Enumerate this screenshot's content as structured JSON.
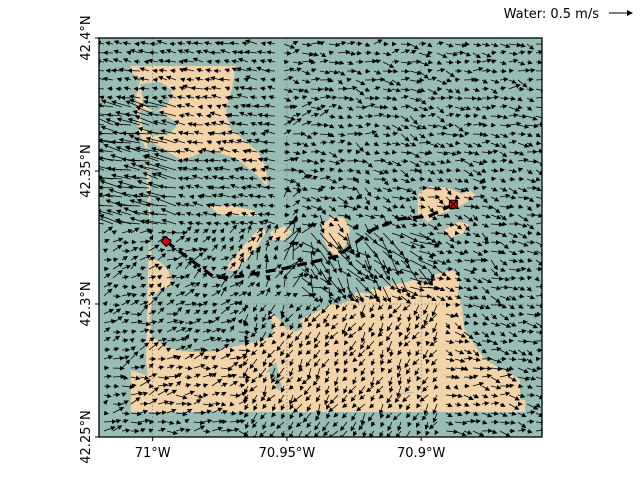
{
  "map": {
    "type": "current-vector-map",
    "colors": {
      "water": "#97bdb5",
      "land": "#f3d4a8",
      "route": "#000000",
      "marker": "#e00000",
      "arrows": "#000000",
      "grid": "#777777"
    },
    "extent": {
      "lon": [
        -71.02,
        -70.855
      ],
      "lat": [
        42.25,
        42.4
      ]
    },
    "x_ticks": [
      {
        "value": -71.0,
        "label": "71°W"
      },
      {
        "value": -70.95,
        "label": "70.95°W"
      },
      {
        "value": -70.9,
        "label": "70.9°W"
      }
    ],
    "y_ticks": [
      {
        "value": 42.25,
        "label": "42.25°N"
      },
      {
        "value": 42.3,
        "label": "42.3°N"
      },
      {
        "value": 42.35,
        "label": "42.35°N"
      },
      {
        "value": 42.4,
        "label": "42.4°N"
      }
    ],
    "grid": true,
    "legend": {
      "label": "Water: 0.5 m/s",
      "placement": "top-right"
    },
    "route": [
      [
        -70.995,
        42.3235
      ],
      [
        -70.977,
        42.31
      ],
      [
        -70.97,
        42.31
      ],
      [
        -70.951,
        42.3134
      ],
      [
        -70.931,
        42.318
      ],
      [
        -70.918,
        42.328
      ],
      [
        -70.908,
        42.332
      ],
      [
        -70.897,
        42.333
      ],
      [
        -70.888,
        42.3375
      ]
    ],
    "start": {
      "lon": -70.995,
      "lat": 42.3235,
      "symbol": "diamond"
    },
    "end": {
      "lon": -70.888,
      "lat": 42.3375,
      "symbol": "x-marker"
    }
  }
}
